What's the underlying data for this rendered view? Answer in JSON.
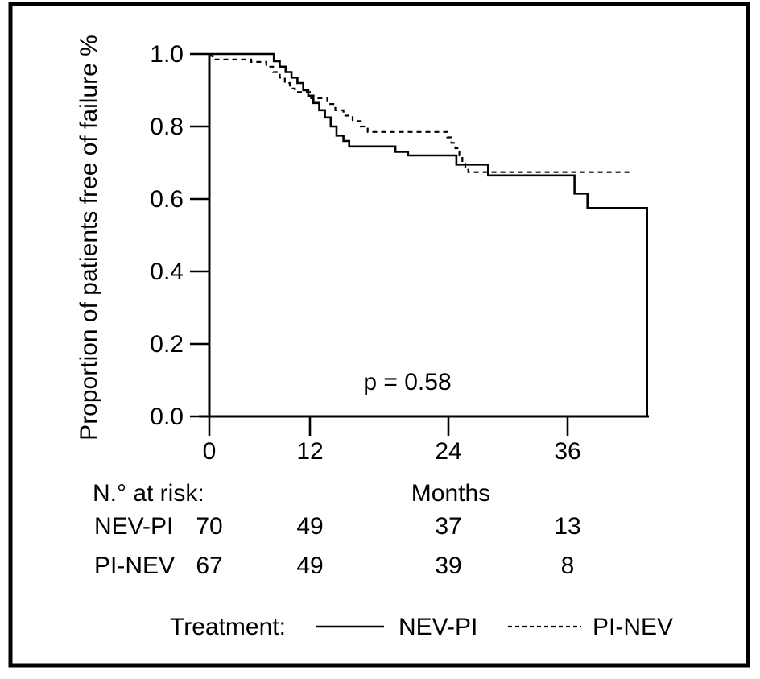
{
  "chart_data": {
    "type": "line",
    "subtype": "kaplan-meier-step",
    "title": "",
    "xlabel": "Months",
    "ylabel": "Proportion of patients free of failure %",
    "x_ticks": [
      0,
      12,
      24,
      36
    ],
    "y_ticks": [
      "1.0",
      "0.8",
      "0.6",
      "0.4",
      "0.2",
      "0.0"
    ],
    "xlim": [
      0,
      44
    ],
    "ylim": [
      0.0,
      1.0
    ],
    "grid": false,
    "annotation": "p = 0.58",
    "series": [
      {
        "name": "NEV-PI",
        "style": "solid",
        "ends_with_drop_to_zero": true,
        "steps": [
          [
            0,
            1.0
          ],
          [
            7.7,
            0.98
          ],
          [
            8.4,
            0.965
          ],
          [
            9.1,
            0.95
          ],
          [
            9.8,
            0.935
          ],
          [
            10.5,
            0.92
          ],
          [
            11.2,
            0.9
          ],
          [
            11.8,
            0.885
          ],
          [
            12.3,
            0.865
          ],
          [
            12.8,
            0.845
          ],
          [
            13.3,
            0.825
          ],
          [
            13.8,
            0.8
          ],
          [
            14.3,
            0.775
          ],
          [
            14.9,
            0.76
          ],
          [
            15.4,
            0.745
          ],
          [
            19.4,
            0.73
          ],
          [
            20.5,
            0.72
          ],
          [
            24.8,
            0.695
          ],
          [
            28.0,
            0.665
          ],
          [
            36.7,
            0.615
          ],
          [
            38.0,
            0.575
          ],
          [
            44.0,
            0.0
          ]
        ]
      },
      {
        "name": "PI-NEV",
        "style": "dashed",
        "ends_with_drop_to_zero": false,
        "steps": [
          [
            0,
            0.995
          ],
          [
            0.4,
            0.985
          ],
          [
            5.0,
            0.978
          ],
          [
            6.8,
            0.965
          ],
          [
            7.6,
            0.95
          ],
          [
            8.4,
            0.935
          ],
          [
            9.0,
            0.92
          ],
          [
            9.6,
            0.905
          ],
          [
            10.2,
            0.895
          ],
          [
            12.1,
            0.878
          ],
          [
            13.5,
            0.862
          ],
          [
            14.2,
            0.845
          ],
          [
            14.9,
            0.83
          ],
          [
            15.7,
            0.815
          ],
          [
            16.4,
            0.8
          ],
          [
            17.0,
            0.785
          ],
          [
            23.9,
            0.77
          ],
          [
            24.3,
            0.755
          ],
          [
            24.7,
            0.74
          ],
          [
            25.1,
            0.72
          ],
          [
            25.4,
            0.7
          ],
          [
            25.7,
            0.685
          ],
          [
            26.0,
            0.674
          ],
          [
            42.5,
            0.674
          ]
        ]
      }
    ]
  },
  "risk_table": {
    "header": "N.° at risk:",
    "time_points": [
      0,
      12,
      24,
      36
    ],
    "rows": [
      {
        "label": "NEV-PI",
        "values": [
          "70",
          "49",
          "37",
          "13"
        ]
      },
      {
        "label": "PI-NEV",
        "values": [
          "67",
          "49",
          "39",
          "8"
        ]
      }
    ]
  },
  "legend": {
    "title": "Treatment:",
    "entries": [
      {
        "label": "NEV-PI",
        "style": "solid"
      },
      {
        "label": "PI-NEV",
        "style": "dashed"
      }
    ]
  },
  "colors": {
    "line": "#000000",
    "border": "#000000",
    "background": "#ffffff"
  }
}
